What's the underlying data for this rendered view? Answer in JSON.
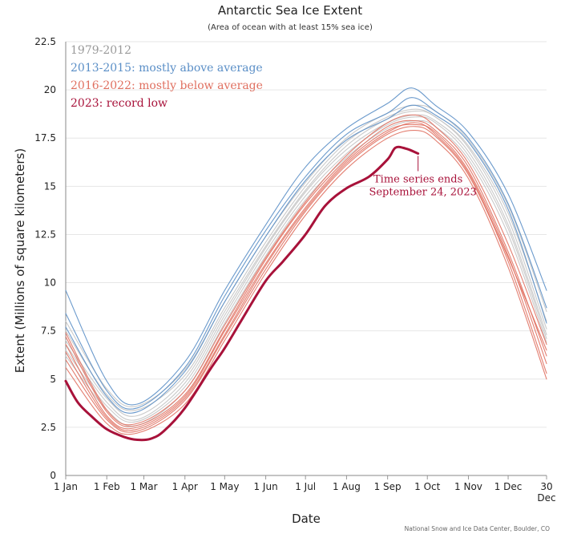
{
  "chart_data": {
    "type": "line",
    "title": "Antarctic Sea Ice Extent",
    "subtitle": "(Area of ocean with at least 15% sea ice)",
    "xlabel": "Date",
    "ylabel": "Extent (Millions of square kilometers)",
    "ylim": [
      0,
      22.5
    ],
    "xlim": [
      1,
      364
    ],
    "y_ticks": [
      "0",
      "2.5",
      "5",
      "7.5",
      "10",
      "12.5",
      "15",
      "17.5",
      "20",
      "22.5"
    ],
    "x_ticks": [
      {
        "label": "1 Jan",
        "day": 1
      },
      {
        "label": "1 Feb",
        "day": 32
      },
      {
        "label": "1 Mar",
        "day": 60
      },
      {
        "label": "1 Apr",
        "day": 91
      },
      {
        "label": "1 May",
        "day": 121
      },
      {
        "label": "1 Jun",
        "day": 152
      },
      {
        "label": "1 Jul",
        "day": 182
      },
      {
        "label": "1 Aug",
        "day": 213
      },
      {
        "label": "1 Sep",
        "day": 244
      },
      {
        "label": "1 Oct",
        "day": 274
      },
      {
        "label": "1 Nov",
        "day": 305
      },
      {
        "label": "1 Dec",
        "day": 335
      },
      {
        "label": "30",
        "label2": "Dec",
        "day": 364
      }
    ],
    "grid": true,
    "legend_placement": "top-left",
    "groups": [
      {
        "label": "1979-2012",
        "color": "#9a9a9a"
      },
      {
        "label": "2013-2015: mostly above average",
        "color": "#5b8fc7"
      },
      {
        "label": "2016-2022: mostly below average",
        "color": "#e07060"
      },
      {
        "label": "2023: record low",
        "color": "#a8123a"
      }
    ],
    "series": [
      {
        "name": "2023: record low",
        "group": 3,
        "color": "#a8123a",
        "x": [
          1,
          10,
          20,
          32,
          45,
          55,
          65,
          75,
          91,
          110,
          121,
          135,
          152,
          165,
          182,
          197,
          213,
          230,
          244,
          250,
          258,
          267
        ],
        "y": [
          4.9,
          3.8,
          3.1,
          2.4,
          2.0,
          1.85,
          1.9,
          2.3,
          3.5,
          5.5,
          6.6,
          8.2,
          10.1,
          11.1,
          12.5,
          14.0,
          14.9,
          15.5,
          16.4,
          17.0,
          16.95,
          16.7
        ]
      },
      {
        "name": "",
        "group": 0,
        "color": "#c4c4c4",
        "x": [
          1,
          32,
          55,
          91,
          121,
          152,
          182,
          213,
          244,
          265,
          280,
          305,
          335,
          364
        ],
        "y": [
          6.8,
          3.8,
          2.9,
          4.8,
          8.3,
          11.8,
          14.7,
          16.9,
          18.3,
          18.7,
          18.4,
          16.8,
          13.0,
          7.3
        ]
      },
      {
        "name": "",
        "group": 0,
        "color": "#c4c4c4",
        "x": [
          1,
          32,
          55,
          91,
          121,
          152,
          182,
          213,
          244,
          265,
          280,
          305,
          335,
          364
        ],
        "y": [
          7.5,
          4.2,
          3.4,
          5.2,
          8.7,
          12.1,
          15.0,
          17.3,
          18.6,
          19.0,
          18.6,
          17.1,
          13.6,
          8.0
        ]
      },
      {
        "name": "",
        "group": 0,
        "color": "#c4c4c4",
        "x": [
          1,
          32,
          55,
          91,
          121,
          152,
          182,
          213,
          244,
          265,
          280,
          305,
          335,
          364
        ],
        "y": [
          6.2,
          3.4,
          2.6,
          4.4,
          7.9,
          11.4,
          14.3,
          16.5,
          18.0,
          18.4,
          18.1,
          16.4,
          12.5,
          6.9
        ]
      },
      {
        "name": "",
        "group": 0,
        "color": "#c4c4c4",
        "x": [
          1,
          32,
          55,
          91,
          121,
          152,
          182,
          213,
          244,
          265,
          280,
          305,
          335,
          364
        ],
        "y": [
          8.0,
          4.5,
          3.6,
          5.5,
          9.0,
          12.4,
          15.2,
          17.5,
          18.8,
          19.2,
          18.9,
          17.4,
          14.0,
          8.5
        ]
      },
      {
        "name": "",
        "group": 0,
        "color": "#c4c4c4",
        "x": [
          1,
          32,
          55,
          91,
          121,
          152,
          182,
          213,
          244,
          265,
          280,
          305,
          335,
          364
        ],
        "y": [
          7.0,
          4.0,
          3.1,
          5.0,
          8.5,
          11.9,
          14.8,
          17.1,
          18.5,
          18.9,
          18.6,
          17.0,
          13.3,
          7.6
        ]
      },
      {
        "name": "",
        "group": 0,
        "color": "#c4c4c4",
        "x": [
          1,
          32,
          55,
          91,
          121,
          152,
          182,
          213,
          244,
          265,
          280,
          305,
          335,
          364
        ],
        "y": [
          6.5,
          3.6,
          2.8,
          4.6,
          8.1,
          11.6,
          14.5,
          16.7,
          18.2,
          18.6,
          18.3,
          16.6,
          12.8,
          7.1
        ]
      },
      {
        "name": "",
        "group": 1,
        "color": "#5b8fc7",
        "x": [
          1,
          32,
          55,
          91,
          121,
          152,
          182,
          213,
          244,
          262,
          280,
          305,
          335,
          364
        ],
        "y": [
          9.6,
          4.9,
          3.7,
          5.9,
          9.6,
          13.0,
          16.0,
          18.0,
          19.3,
          20.1,
          19.2,
          17.8,
          14.6,
          9.6
        ]
      },
      {
        "name": "",
        "group": 1,
        "color": "#5b8fc7",
        "x": [
          1,
          32,
          55,
          91,
          121,
          152,
          182,
          213,
          244,
          262,
          280,
          305,
          335,
          364
        ],
        "y": [
          8.4,
          4.4,
          3.5,
          5.6,
          9.3,
          12.7,
          15.5,
          17.7,
          18.8,
          19.6,
          18.9,
          17.5,
          14.1,
          8.7
        ]
      },
      {
        "name": "",
        "group": 1,
        "color": "#5b8fc7",
        "x": [
          1,
          32,
          55,
          91,
          121,
          152,
          182,
          213,
          244,
          262,
          280,
          305,
          335,
          364
        ],
        "y": [
          7.7,
          4.1,
          3.3,
          5.4,
          9.0,
          12.4,
          15.3,
          17.4,
          18.5,
          19.2,
          18.7,
          17.3,
          13.8,
          7.9
        ]
      },
      {
        "name": "",
        "group": 2,
        "color": "#e07060",
        "x": [
          1,
          32,
          55,
          91,
          121,
          152,
          182,
          213,
          244,
          265,
          280,
          305,
          335,
          364
        ],
        "y": [
          7.2,
          3.3,
          2.6,
          4.2,
          7.6,
          11.2,
          14.1,
          16.4,
          18.1,
          18.4,
          17.9,
          16.0,
          11.6,
          6.2
        ]
      },
      {
        "name": "",
        "group": 2,
        "color": "#e07060",
        "x": [
          1,
          32,
          55,
          91,
          121,
          152,
          182,
          213,
          244,
          265,
          280,
          305,
          335,
          364
        ],
        "y": [
          6.0,
          2.9,
          2.3,
          3.9,
          7.2,
          10.7,
          13.7,
          16.1,
          17.7,
          18.1,
          17.6,
          15.6,
          11.1,
          5.3
        ]
      },
      {
        "name": "",
        "group": 2,
        "color": "#e07060",
        "x": [
          1,
          32,
          55,
          91,
          121,
          152,
          182,
          213,
          244,
          265,
          280,
          305,
          335,
          364
        ],
        "y": [
          6.8,
          3.1,
          2.5,
          4.1,
          7.5,
          11.0,
          13.9,
          16.3,
          17.9,
          18.2,
          17.8,
          15.8,
          11.4,
          5.8
        ]
      },
      {
        "name": "",
        "group": 2,
        "color": "#e07060",
        "x": [
          1,
          32,
          55,
          91,
          121,
          152,
          182,
          213,
          244,
          265,
          280,
          305,
          335,
          364
        ],
        "y": [
          5.6,
          2.7,
          2.2,
          3.7,
          7.0,
          10.5,
          13.5,
          15.9,
          17.5,
          17.9,
          17.4,
          15.4,
          10.8,
          5.0
        ]
      },
      {
        "name": "",
        "group": 2,
        "color": "#e07060",
        "x": [
          1,
          32,
          55,
          91,
          121,
          152,
          182,
          213,
          244,
          265,
          280,
          305,
          335,
          364
        ],
        "y": [
          7.4,
          3.4,
          2.7,
          4.4,
          7.8,
          11.3,
          14.2,
          16.6,
          18.3,
          18.7,
          18.1,
          16.2,
          12.0,
          6.8
        ]
      },
      {
        "name": "",
        "group": 2,
        "color": "#e07060",
        "x": [
          1,
          32,
          55,
          91,
          121,
          152,
          182,
          213,
          244,
          265,
          280,
          305,
          335,
          364
        ],
        "y": [
          6.4,
          3.0,
          2.4,
          4.0,
          7.3,
          10.9,
          13.8,
          16.2,
          17.8,
          18.3,
          17.7,
          15.7,
          11.3,
          6.5
        ]
      }
    ],
    "annotation": {
      "line1": "Time series ends",
      "line2": "September 24, 2023",
      "x": 267,
      "y": 16.7
    },
    "credit": "National Snow and Ice Data Center, Boulder, CO"
  }
}
